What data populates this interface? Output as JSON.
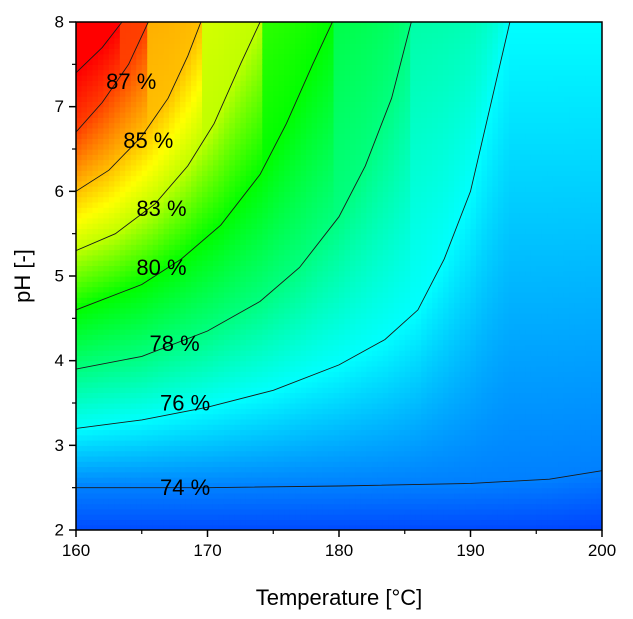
{
  "chart_data": {
    "type": "heatmap",
    "subtype": "contour",
    "title": "",
    "xlabel": "Temperature [°C]",
    "ylabel": "pH [-]",
    "xlim": [
      160,
      200
    ],
    "ylim": [
      2,
      8
    ],
    "x_ticks": [
      160,
      170,
      180,
      190,
      200
    ],
    "y_ticks": [
      2,
      3,
      4,
      5,
      6,
      7,
      8
    ],
    "x_tick_labels": [
      "160",
      "170",
      "180",
      "190",
      "200"
    ],
    "y_tick_labels": [
      "2",
      "3",
      "4",
      "5",
      "6",
      "7",
      "8"
    ],
    "colormap": [
      "#0000ff",
      "#00ffff",
      "#00ff00",
      "#ffff00",
      "#ff0000"
    ],
    "value_range": [
      72,
      88
    ],
    "contours": [
      {
        "label": "74 %",
        "value": 74,
        "label_at": [
          168.3,
          2.5
        ],
        "points": [
          [
            160,
            2.5
          ],
          [
            170,
            2.5
          ],
          [
            180,
            2.52
          ],
          [
            190,
            2.55
          ],
          [
            196,
            2.6
          ],
          [
            200,
            2.7
          ]
        ]
      },
      {
        "label": "76 %",
        "value": 76,
        "label_at": [
          168.3,
          3.5
        ],
        "points": [
          [
            160,
            3.2
          ],
          [
            165,
            3.3
          ],
          [
            170,
            3.45
          ],
          [
            175,
            3.65
          ],
          [
            180,
            3.95
          ],
          [
            183.5,
            4.25
          ],
          [
            186,
            4.6
          ],
          [
            188,
            5.2
          ],
          [
            190,
            6.0
          ],
          [
            191.5,
            7.0
          ],
          [
            193,
            8.0
          ]
        ]
      },
      {
        "label": "78 %",
        "value": 78,
        "label_at": [
          167.5,
          4.2
        ],
        "points": [
          [
            160,
            3.9
          ],
          [
            165,
            4.05
          ],
          [
            170,
            4.35
          ],
          [
            174,
            4.7
          ],
          [
            177,
            5.1
          ],
          [
            180,
            5.7
          ],
          [
            182,
            6.3
          ],
          [
            184,
            7.1
          ],
          [
            185.5,
            8.0
          ]
        ]
      },
      {
        "label": "80 %",
        "value": 80,
        "label_at": [
          166.5,
          5.1
        ],
        "points": [
          [
            160,
            4.6
          ],
          [
            165,
            4.9
          ],
          [
            168,
            5.2
          ],
          [
            171,
            5.6
          ],
          [
            174,
            6.2
          ],
          [
            176,
            6.8
          ],
          [
            178,
            7.5
          ],
          [
            179.5,
            8.0
          ]
        ]
      },
      {
        "label": "83 %",
        "value": 83,
        "label_at": [
          166.5,
          5.8
        ],
        "points": [
          [
            160,
            5.3
          ],
          [
            163,
            5.5
          ],
          [
            166,
            5.85
          ],
          [
            168.5,
            6.3
          ],
          [
            170.5,
            6.8
          ],
          [
            172.5,
            7.5
          ],
          [
            174,
            8.0
          ]
        ]
      },
      {
        "label": "85 %",
        "value": 85,
        "label_at": [
          165.5,
          6.6
        ],
        "points": [
          [
            160,
            6.0
          ],
          [
            162.5,
            6.25
          ],
          [
            165,
            6.65
          ],
          [
            167,
            7.1
          ],
          [
            168.5,
            7.6
          ],
          [
            169.5,
            8.0
          ]
        ]
      },
      {
        "label": "87 %",
        "value": 87,
        "label_at": [
          164.2,
          7.3
        ],
        "points": [
          [
            160,
            6.7
          ],
          [
            162,
            7.05
          ],
          [
            164,
            7.5
          ],
          [
            165.5,
            8.0
          ]
        ]
      },
      {
        "label": "",
        "value": 88,
        "label_at": null,
        "points": [
          [
            160,
            7.4
          ],
          [
            162,
            7.7
          ],
          [
            163.5,
            8.0
          ]
        ]
      }
    ]
  }
}
